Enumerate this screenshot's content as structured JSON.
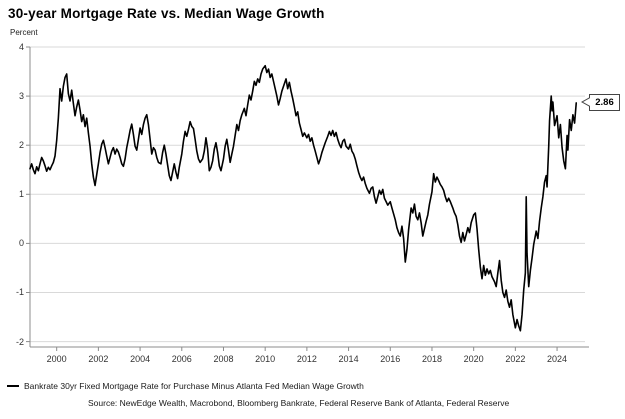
{
  "title": "30-year Mortgage Rate vs. Median Wage Growth",
  "unit_label": "Percent",
  "legend": {
    "label": "Bankrate 30yr Fixed Mortgage Rate for Purchase Minus Atlanta Fed Median Wage Growth"
  },
  "source": "Source: NewEdge Wealth, Macrobond, Bloomberg Bankrate, Federal Reserve Bank of Atlanta, Federal Reserve",
  "callout": {
    "value": "2.86"
  },
  "colors": {
    "line": "#000000",
    "gridline": "#d9d9d9",
    "axis": "#8c8c8c",
    "tick_label": "#333333",
    "background": "#ffffff"
  },
  "chart_data": {
    "type": "line",
    "title": "30-year Mortgage Rate vs. Median Wage Growth",
    "ylabel": "Percent",
    "xlabel": "",
    "grid": true,
    "legend_position": "bottom-left",
    "xlim": [
      1998.72,
      2025.34
    ],
    "ylim": [
      -2.11,
      4.0
    ],
    "y_ticks": [
      4,
      3,
      2,
      1,
      0,
      -1,
      -2
    ],
    "x_ticks": [
      2000,
      2002,
      2004,
      2006,
      2008,
      2010,
      2012,
      2014,
      2016,
      2018,
      2020,
      2022,
      2024
    ],
    "last_value_label": 2.86,
    "series_name": "Bankrate 30yr Fixed Mortgage Rate for Purchase Minus Atlanta Fed Median Wage Growth",
    "points": [
      [
        1998.72,
        1.52
      ],
      [
        1998.8,
        1.62
      ],
      [
        1998.88,
        1.5
      ],
      [
        1998.96,
        1.42
      ],
      [
        1999.04,
        1.56
      ],
      [
        1999.12,
        1.48
      ],
      [
        1999.2,
        1.62
      ],
      [
        1999.28,
        1.75
      ],
      [
        1999.36,
        1.68
      ],
      [
        1999.44,
        1.58
      ],
      [
        1999.52,
        1.47
      ],
      [
        1999.6,
        1.55
      ],
      [
        1999.68,
        1.5
      ],
      [
        1999.76,
        1.58
      ],
      [
        1999.84,
        1.65
      ],
      [
        1999.92,
        1.78
      ],
      [
        2000.0,
        2.1
      ],
      [
        2000.08,
        2.55
      ],
      [
        2000.16,
        3.15
      ],
      [
        2000.24,
        2.9
      ],
      [
        2000.32,
        3.2
      ],
      [
        2000.4,
        3.38
      ],
      [
        2000.48,
        3.45
      ],
      [
        2000.56,
        3.05
      ],
      [
        2000.64,
        2.9
      ],
      [
        2000.72,
        3.12
      ],
      [
        2000.8,
        2.85
      ],
      [
        2000.88,
        2.6
      ],
      [
        2000.96,
        2.78
      ],
      [
        2001.04,
        2.92
      ],
      [
        2001.12,
        2.72
      ],
      [
        2001.2,
        2.48
      ],
      [
        2001.28,
        2.62
      ],
      [
        2001.36,
        2.38
      ],
      [
        2001.44,
        2.55
      ],
      [
        2001.52,
        2.25
      ],
      [
        2001.6,
        1.98
      ],
      [
        2001.68,
        1.62
      ],
      [
        2001.76,
        1.35
      ],
      [
        2001.84,
        1.18
      ],
      [
        2001.92,
        1.4
      ],
      [
        2002.0,
        1.62
      ],
      [
        2002.08,
        1.85
      ],
      [
        2002.16,
        2.02
      ],
      [
        2002.24,
        2.1
      ],
      [
        2002.32,
        1.95
      ],
      [
        2002.4,
        1.78
      ],
      [
        2002.48,
        1.62
      ],
      [
        2002.56,
        1.75
      ],
      [
        2002.64,
        1.88
      ],
      [
        2002.72,
        1.95
      ],
      [
        2002.8,
        1.82
      ],
      [
        2002.88,
        1.92
      ],
      [
        2002.96,
        1.86
      ],
      [
        2003.04,
        1.75
      ],
      [
        2003.12,
        1.62
      ],
      [
        2003.2,
        1.57
      ],
      [
        2003.28,
        1.72
      ],
      [
        2003.36,
        1.95
      ],
      [
        2003.44,
        2.12
      ],
      [
        2003.52,
        2.3
      ],
      [
        2003.6,
        2.43
      ],
      [
        2003.68,
        2.22
      ],
      [
        2003.76,
        1.98
      ],
      [
        2003.84,
        1.9
      ],
      [
        2003.92,
        2.12
      ],
      [
        2004.0,
        2.35
      ],
      [
        2004.08,
        2.22
      ],
      [
        2004.16,
        2.42
      ],
      [
        2004.24,
        2.55
      ],
      [
        2004.32,
        2.62
      ],
      [
        2004.4,
        2.42
      ],
      [
        2004.48,
        2.12
      ],
      [
        2004.56,
        1.82
      ],
      [
        2004.64,
        1.95
      ],
      [
        2004.72,
        1.9
      ],
      [
        2004.8,
        1.75
      ],
      [
        2004.88,
        1.65
      ],
      [
        2005.0,
        1.62
      ],
      [
        2005.08,
        1.85
      ],
      [
        2005.16,
        2.0
      ],
      [
        2005.24,
        1.82
      ],
      [
        2005.32,
        1.6
      ],
      [
        2005.4,
        1.38
      ],
      [
        2005.48,
        1.28
      ],
      [
        2005.56,
        1.45
      ],
      [
        2005.64,
        1.62
      ],
      [
        2005.72,
        1.45
      ],
      [
        2005.8,
        1.32
      ],
      [
        2005.88,
        1.55
      ],
      [
        2006.0,
        1.82
      ],
      [
        2006.08,
        2.08
      ],
      [
        2006.16,
        2.28
      ],
      [
        2006.24,
        2.18
      ],
      [
        2006.32,
        2.32
      ],
      [
        2006.4,
        2.48
      ],
      [
        2006.48,
        2.38
      ],
      [
        2006.56,
        2.34
      ],
      [
        2006.64,
        2.12
      ],
      [
        2006.72,
        1.88
      ],
      [
        2006.8,
        1.72
      ],
      [
        2006.88,
        1.65
      ],
      [
        2007.0,
        1.72
      ],
      [
        2007.08,
        1.88
      ],
      [
        2007.16,
        2.15
      ],
      [
        2007.24,
        1.92
      ],
      [
        2007.32,
        1.48
      ],
      [
        2007.4,
        1.55
      ],
      [
        2007.48,
        1.68
      ],
      [
        2007.56,
        1.92
      ],
      [
        2007.64,
        2.05
      ],
      [
        2007.72,
        1.85
      ],
      [
        2007.8,
        1.58
      ],
      [
        2007.88,
        1.48
      ],
      [
        2008.0,
        1.72
      ],
      [
        2008.08,
        1.98
      ],
      [
        2008.16,
        2.12
      ],
      [
        2008.24,
        1.9
      ],
      [
        2008.32,
        1.65
      ],
      [
        2008.4,
        1.82
      ],
      [
        2008.48,
        1.98
      ],
      [
        2008.56,
        2.2
      ],
      [
        2008.64,
        2.42
      ],
      [
        2008.72,
        2.3
      ],
      [
        2008.8,
        2.5
      ],
      [
        2008.88,
        2.62
      ],
      [
        2009.0,
        2.75
      ],
      [
        2009.08,
        2.6
      ],
      [
        2009.16,
        2.82
      ],
      [
        2009.24,
        3.02
      ],
      [
        2009.32,
        2.92
      ],
      [
        2009.4,
        3.1
      ],
      [
        2009.48,
        3.3
      ],
      [
        2009.56,
        3.22
      ],
      [
        2009.64,
        3.35
      ],
      [
        2009.72,
        3.28
      ],
      [
        2009.8,
        3.45
      ],
      [
        2009.88,
        3.55
      ],
      [
        2010.0,
        3.62
      ],
      [
        2010.08,
        3.48
      ],
      [
        2010.16,
        3.55
      ],
      [
        2010.24,
        3.38
      ],
      [
        2010.32,
        3.45
      ],
      [
        2010.4,
        3.3
      ],
      [
        2010.48,
        3.15
      ],
      [
        2010.56,
        3.0
      ],
      [
        2010.64,
        2.82
      ],
      [
        2010.72,
        2.95
      ],
      [
        2010.8,
        3.1
      ],
      [
        2010.88,
        3.2
      ],
      [
        2011.0,
        3.35
      ],
      [
        2011.08,
        3.15
      ],
      [
        2011.16,
        3.28
      ],
      [
        2011.24,
        3.1
      ],
      [
        2011.32,
        2.95
      ],
      [
        2011.4,
        2.78
      ],
      [
        2011.48,
        2.6
      ],
      [
        2011.56,
        2.68
      ],
      [
        2011.64,
        2.45
      ],
      [
        2011.72,
        2.32
      ],
      [
        2011.8,
        2.18
      ],
      [
        2011.88,
        2.25
      ],
      [
        2012.0,
        2.15
      ],
      [
        2012.08,
        2.22
      ],
      [
        2012.16,
        2.08
      ],
      [
        2012.24,
        2.15
      ],
      [
        2012.32,
        2.0
      ],
      [
        2012.4,
        1.88
      ],
      [
        2012.48,
        1.75
      ],
      [
        2012.56,
        1.62
      ],
      [
        2012.64,
        1.72
      ],
      [
        2012.72,
        1.85
      ],
      [
        2012.8,
        1.95
      ],
      [
        2012.88,
        2.05
      ],
      [
        2013.0,
        2.18
      ],
      [
        2013.08,
        2.28
      ],
      [
        2013.16,
        2.2
      ],
      [
        2013.24,
        2.3
      ],
      [
        2013.32,
        2.18
      ],
      [
        2013.4,
        2.26
      ],
      [
        2013.48,
        2.12
      ],
      [
        2013.56,
        2.02
      ],
      [
        2013.64,
        1.95
      ],
      [
        2013.72,
        2.08
      ],
      [
        2013.8,
        2.12
      ],
      [
        2013.88,
        1.98
      ],
      [
        2014.0,
        1.92
      ],
      [
        2014.08,
        2.02
      ],
      [
        2014.16,
        1.88
      ],
      [
        2014.24,
        1.82
      ],
      [
        2014.32,
        1.72
      ],
      [
        2014.4,
        1.58
      ],
      [
        2014.48,
        1.45
      ],
      [
        2014.56,
        1.35
      ],
      [
        2014.64,
        1.28
      ],
      [
        2014.72,
        1.35
      ],
      [
        2014.8,
        1.22
      ],
      [
        2014.88,
        1.12
      ],
      [
        2015.0,
        1.02
      ],
      [
        2015.08,
        1.12
      ],
      [
        2015.16,
        1.15
      ],
      [
        2015.24,
        0.95
      ],
      [
        2015.32,
        0.82
      ],
      [
        2015.4,
        0.95
      ],
      [
        2015.48,
        1.08
      ],
      [
        2015.56,
        1.0
      ],
      [
        2015.64,
        1.1
      ],
      [
        2015.72,
        0.92
      ],
      [
        2015.8,
        0.85
      ],
      [
        2015.88,
        0.78
      ],
      [
        2016.0,
        0.85
      ],
      [
        2016.08,
        0.72
      ],
      [
        2016.16,
        0.6
      ],
      [
        2016.24,
        0.48
      ],
      [
        2016.32,
        0.32
      ],
      [
        2016.4,
        0.22
      ],
      [
        2016.48,
        0.15
      ],
      [
        2016.56,
        0.35
      ],
      [
        2016.64,
        0.1
      ],
      [
        2016.72,
        -0.38
      ],
      [
        2016.8,
        -0.12
      ],
      [
        2016.88,
        0.28
      ],
      [
        2017.0,
        0.72
      ],
      [
        2017.08,
        0.62
      ],
      [
        2017.16,
        0.8
      ],
      [
        2017.24,
        0.55
      ],
      [
        2017.32,
        0.48
      ],
      [
        2017.4,
        0.62
      ],
      [
        2017.48,
        0.42
      ],
      [
        2017.56,
        0.15
      ],
      [
        2017.64,
        0.3
      ],
      [
        2017.72,
        0.45
      ],
      [
        2017.8,
        0.58
      ],
      [
        2017.88,
        0.8
      ],
      [
        2018.0,
        1.05
      ],
      [
        2018.08,
        1.42
      ],
      [
        2018.16,
        1.25
      ],
      [
        2018.24,
        1.35
      ],
      [
        2018.32,
        1.28
      ],
      [
        2018.4,
        1.2
      ],
      [
        2018.48,
        1.15
      ],
      [
        2018.56,
        1.08
      ],
      [
        2018.64,
        0.95
      ],
      [
        2018.72,
        0.85
      ],
      [
        2018.8,
        0.92
      ],
      [
        2018.88,
        0.85
      ],
      [
        2019.0,
        0.72
      ],
      [
        2019.08,
        0.62
      ],
      [
        2019.16,
        0.55
      ],
      [
        2019.24,
        0.38
      ],
      [
        2019.32,
        0.15
      ],
      [
        2019.4,
        0.02
      ],
      [
        2019.48,
        0.22
      ],
      [
        2019.56,
        0.05
      ],
      [
        2019.64,
        0.18
      ],
      [
        2019.72,
        0.32
      ],
      [
        2019.8,
        0.22
      ],
      [
        2019.88,
        0.42
      ],
      [
        2020.0,
        0.58
      ],
      [
        2020.08,
        0.62
      ],
      [
        2020.16,
        0.3
      ],
      [
        2020.24,
        -0.12
      ],
      [
        2020.32,
        -0.48
      ],
      [
        2020.4,
        -0.72
      ],
      [
        2020.48,
        -0.45
      ],
      [
        2020.56,
        -0.65
      ],
      [
        2020.64,
        -0.52
      ],
      [
        2020.72,
        -0.62
      ],
      [
        2020.8,
        -0.55
      ],
      [
        2020.88,
        -0.68
      ],
      [
        2021.0,
        -0.78
      ],
      [
        2021.08,
        -0.88
      ],
      [
        2021.16,
        -0.6
      ],
      [
        2021.24,
        -0.35
      ],
      [
        2021.32,
        -0.75
      ],
      [
        2021.4,
        -1.0
      ],
      [
        2021.48,
        -1.1
      ],
      [
        2021.56,
        -0.95
      ],
      [
        2021.64,
        -1.18
      ],
      [
        2021.72,
        -1.3
      ],
      [
        2021.8,
        -1.15
      ],
      [
        2021.88,
        -1.45
      ],
      [
        2022.0,
        -1.72
      ],
      [
        2022.08,
        -1.55
      ],
      [
        2022.16,
        -1.68
      ],
      [
        2022.24,
        -1.78
      ],
      [
        2022.32,
        -1.45
      ],
      [
        2022.4,
        -0.95
      ],
      [
        2022.48,
        -0.6
      ],
      [
        2022.52,
        0.95
      ],
      [
        2022.56,
        -0.2
      ],
      [
        2022.64,
        -0.88
      ],
      [
        2022.72,
        -0.55
      ],
      [
        2022.8,
        -0.3
      ],
      [
        2022.88,
        -0.02
      ],
      [
        2023.0,
        0.25
      ],
      [
        2023.08,
        0.1
      ],
      [
        2023.16,
        0.45
      ],
      [
        2023.24,
        0.72
      ],
      [
        2023.32,
        0.95
      ],
      [
        2023.4,
        1.25
      ],
      [
        2023.48,
        1.38
      ],
      [
        2023.52,
        1.15
      ],
      [
        2023.6,
        1.98
      ],
      [
        2023.64,
        2.5
      ],
      [
        2023.72,
        3.0
      ],
      [
        2023.76,
        2.7
      ],
      [
        2023.8,
        2.88
      ],
      [
        2023.88,
        2.4
      ],
      [
        2024.0,
        2.6
      ],
      [
        2024.08,
        2.15
      ],
      [
        2024.16,
        2.42
      ],
      [
        2024.24,
        1.95
      ],
      [
        2024.32,
        1.68
      ],
      [
        2024.4,
        1.52
      ],
      [
        2024.48,
        2.2
      ],
      [
        2024.52,
        1.9
      ],
      [
        2024.6,
        2.52
      ],
      [
        2024.68,
        2.3
      ],
      [
        2024.76,
        2.62
      ],
      [
        2024.84,
        2.45
      ],
      [
        2024.92,
        2.86
      ]
    ]
  }
}
